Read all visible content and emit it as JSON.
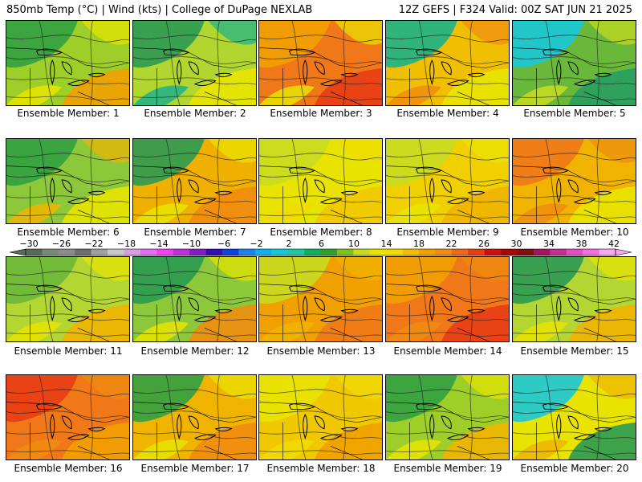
{
  "header": {
    "left": "850mb Temp (°C) | Wind (kts) | College of DuPage NEXLAB",
    "right": "12Z GEFS | F324 Valid: 00Z SAT JUN 21 2025"
  },
  "panels": [
    {
      "label": "Ensemble Member: 1",
      "bg": "#9ecf28",
      "fill1": "#31a043",
      "fill2": "#f0a000",
      "fill3": "#e8e400"
    },
    {
      "label": "Ensemble Member: 2",
      "bg": "#b2d630",
      "fill1": "#2a9a52",
      "fill2": "#e8e400",
      "fill3": "#1cb28a"
    },
    {
      "label": "Ensemble Member: 3",
      "bg": "#f07818",
      "fill1": "#f0a000",
      "fill2": "#e83c14",
      "fill3": "#e8e400"
    },
    {
      "label": "Ensemble Member: 4",
      "bg": "#f0c000",
      "fill1": "#1cb28a",
      "fill2": "#e8e400",
      "fill3": "#f08c10"
    },
    {
      "label": "Ensemble Member: 5",
      "bg": "#6ab83a",
      "fill1": "#18c8d8",
      "fill2": "#28a060",
      "fill3": "#c8dc20"
    },
    {
      "label": "Ensemble Member: 6",
      "bg": "#8cc83a",
      "fill1": "#31a043",
      "fill2": "#e8e400",
      "fill3": "#f0b400"
    },
    {
      "label": "Ensemble Member: 7",
      "bg": "#f0b000",
      "fill1": "#2a9a52",
      "fill2": "#f08c10",
      "fill3": "#e8e400"
    },
    {
      "label": "Ensemble Member: 8",
      "bg": "#e8e400",
      "fill1": "#c8dc20",
      "fill2": "#f0c800",
      "fill3": "#f0dc00"
    },
    {
      "label": "Ensemble Member: 9",
      "bg": "#f0d000",
      "fill1": "#c8dc20",
      "fill2": "#f0b400",
      "fill3": "#e8e400"
    },
    {
      "label": "Ensemble Member: 10",
      "bg": "#f0b400",
      "fill1": "#f07818",
      "fill2": "#e8e400",
      "fill3": "#f08c10"
    },
    {
      "label": "Ensemble Member: 11",
      "bg": "#b4d632",
      "fill1": "#6ab83a",
      "fill2": "#f0b400",
      "fill3": "#e8e400"
    },
    {
      "label": "Ensemble Member: 12",
      "bg": "#8cc83a",
      "fill1": "#2a9a52",
      "fill2": "#f08c10",
      "fill3": "#e8e400"
    },
    {
      "label": "Ensemble Member: 13",
      "bg": "#f0a000",
      "fill1": "#c8dc20",
      "fill2": "#f07818",
      "fill3": "#f0b400"
    },
    {
      "label": "Ensemble Member: 14",
      "bg": "#f07818",
      "fill1": "#f0a000",
      "fill2": "#e83c14",
      "fill3": "#f08c10"
    },
    {
      "label": "Ensemble Member: 15",
      "bg": "#b4d632",
      "fill1": "#2a9a52",
      "fill2": "#f0b400",
      "fill3": "#e8e400"
    },
    {
      "label": "Ensemble Member: 16",
      "bg": "#f07818",
      "fill1": "#e83c14",
      "fill2": "#f0a000",
      "fill3": "#f08c10"
    },
    {
      "label": "Ensemble Member: 17",
      "bg": "#f0b400",
      "fill1": "#31a043",
      "fill2": "#f08c10",
      "fill3": "#e8e400"
    },
    {
      "label": "Ensemble Member: 18",
      "bg": "#f0c800",
      "fill1": "#e8e400",
      "fill2": "#f0a000",
      "fill3": "#f0dc00"
    },
    {
      "label": "Ensemble Member: 19",
      "bg": "#9ecf28",
      "fill1": "#31a043",
      "fill2": "#f0b400",
      "fill3": "#e8e400"
    },
    {
      "label": "Ensemble Member: 20",
      "bg": "#e8e400",
      "fill1": "#18c8d8",
      "fill2": "#2a9a52",
      "fill3": "#f0b400"
    }
  ],
  "colorbar": {
    "labels": [
      "-30",
      "-26",
      "-22",
      "-18",
      "-14",
      "-10",
      "-6",
      "-2",
      "2",
      "6",
      "10",
      "14",
      "18",
      "22",
      "26",
      "30",
      "34",
      "38",
      "42"
    ],
    "colors": [
      "#5a6a5a",
      "#7a8a7a",
      "#8c8c8c",
      "#6e6e6e",
      "#a0a0a0",
      "#c8c8c8",
      "#d8a0e0",
      "#e070f0",
      "#f040f0",
      "#c030d8",
      "#8020c0",
      "#3010b0",
      "#1040e0",
      "#2080f0",
      "#10b0f0",
      "#18c8d8",
      "#20c8a0",
      "#10b060",
      "#30a030",
      "#80c020",
      "#c8dc20",
      "#e8e400",
      "#f0dc00",
      "#f0c000",
      "#f0a000",
      "#f08c10",
      "#f06818",
      "#e83c14",
      "#d01010",
      "#a80808",
      "#801010",
      "#a01860",
      "#c03090",
      "#e050c0",
      "#f070e0",
      "#f8a8f0"
    ]
  }
}
